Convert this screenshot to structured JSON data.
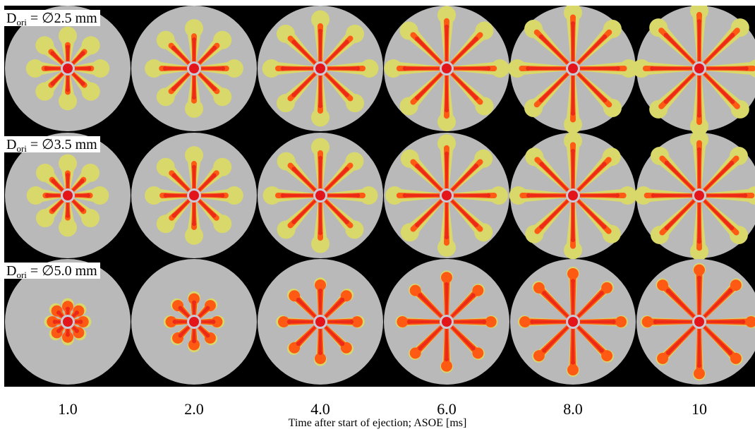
{
  "row_labels": [
    {
      "symbol": "D",
      "subscript": "ori",
      "value": " = ∅2.5 mm"
    },
    {
      "symbol": "D",
      "subscript": "ori",
      "value": " = ∅3.5 mm"
    },
    {
      "symbol": "D",
      "subscript": "ori",
      "value": " = ∅5.0 mm"
    }
  ],
  "time_labels": [
    "1.0",
    "2.0",
    "4.0",
    "6.0",
    "8.0",
    "10"
  ],
  "axis_title": "Time after start of ejection; ASOE [ms]",
  "colors": {
    "background": "#000000",
    "chamber": "#b9b9b9",
    "outer_envelope": "#d9d86a",
    "core": "#ff5a14",
    "dense_core": "#e3151a",
    "nozzle_hole": "#c9c9d8"
  },
  "spray": {
    "plume_count": 8,
    "rows": [
      {
        "label_index": 0,
        "lengths": [
          0.42,
          0.56,
          0.72,
          0.8,
          0.86,
          0.9
        ],
        "yellow_extra": [
          0.14,
          0.12,
          0.1,
          0.09,
          0.07,
          0.06
        ],
        "tip_style": "blob"
      },
      {
        "label_index": 1,
        "lengths": [
          0.4,
          0.55,
          0.72,
          0.8,
          0.85,
          0.88
        ],
        "yellow_extra": [
          0.15,
          0.13,
          0.09,
          0.07,
          0.06,
          0.05
        ],
        "tip_style": "blob"
      },
      {
        "label_index": 2,
        "lengths": [
          0.26,
          0.38,
          0.6,
          0.72,
          0.78,
          0.84
        ],
        "yellow_extra": [
          0.04,
          0.03,
          0.03,
          0.02,
          0.02,
          0.02
        ],
        "tip_style": "bulb"
      }
    ]
  }
}
